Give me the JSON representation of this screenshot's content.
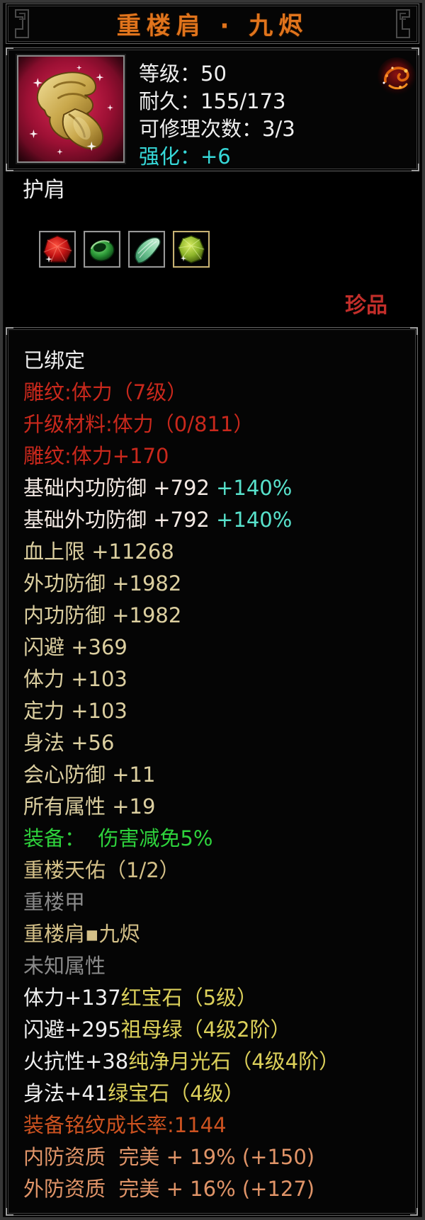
{
  "window": {
    "title": "重楼肩 · 九烬"
  },
  "info": {
    "item_icon": "golden-dragon-shoulder-icon",
    "seal_icon": "red-flame-seal-icon",
    "lines": [
      {
        "text": "等级：50",
        "color": "white"
      },
      {
        "text": "耐久：155/173",
        "color": "white"
      },
      {
        "text": "可修理次数：3/3",
        "color": "white"
      },
      {
        "text": "强化：+6",
        "color": "cyan"
      }
    ]
  },
  "type_label": "护肩",
  "gem_slots": [
    {
      "icon": "ruby-gem-icon",
      "border": "silver"
    },
    {
      "icon": "emerald-ring-gem-icon",
      "border": "silver"
    },
    {
      "icon": "moonstone-gem-icon",
      "border": "silver"
    },
    {
      "icon": "peridot-gem-icon",
      "border": "gold"
    }
  ],
  "rarity_label": "珍品",
  "stats": [
    {
      "segments": [
        {
          "text": "已绑定",
          "color": "white"
        }
      ]
    },
    {
      "segments": [
        {
          "text": "雕纹:体力（7级）",
          "color": "red"
        }
      ]
    },
    {
      "segments": [
        {
          "text": "升级材料:体力（0/811）",
          "color": "red"
        }
      ]
    },
    {
      "segments": [
        {
          "text": "雕纹:体力+170",
          "color": "red"
        }
      ]
    },
    {
      "segments": [
        {
          "text": "基础内功防御 +792 ",
          "color": "pinkwhite"
        },
        {
          "text": "+140%",
          "color": "cyanpct"
        }
      ]
    },
    {
      "segments": [
        {
          "text": "基础外功防御 +792 ",
          "color": "pinkwhite"
        },
        {
          "text": "+140%",
          "color": "cyanpct"
        }
      ]
    },
    {
      "segments": [
        {
          "text": "血上限 +11268",
          "color": "cream"
        }
      ]
    },
    {
      "segments": [
        {
          "text": "外功防御 +1982",
          "color": "cream"
        }
      ]
    },
    {
      "segments": [
        {
          "text": "内功防御 +1982",
          "color": "cream"
        }
      ]
    },
    {
      "segments": [
        {
          "text": "闪避 +369",
          "color": "cream"
        }
      ]
    },
    {
      "segments": [
        {
          "text": "体力 +103",
          "color": "cream"
        }
      ]
    },
    {
      "segments": [
        {
          "text": "定力 +103",
          "color": "cream"
        }
      ]
    },
    {
      "segments": [
        {
          "text": "身法 +56",
          "color": "cream"
        }
      ]
    },
    {
      "segments": [
        {
          "text": "会心防御 +11",
          "color": "cream"
        }
      ]
    },
    {
      "segments": [
        {
          "text": "所有属性 +19",
          "color": "cream"
        }
      ]
    },
    {
      "segments": [
        {
          "text": "装备：  伤害减免5%",
          "color": "green"
        }
      ]
    },
    {
      "segments": [
        {
          "text": "重楼天佑（1/2）",
          "color": "tan"
        }
      ]
    },
    {
      "segments": [
        {
          "text": "重楼甲",
          "color": "gray"
        }
      ]
    },
    {
      "segments": [
        {
          "text": "重楼肩▪九烬",
          "color": "tan"
        }
      ]
    },
    {
      "segments": [
        {
          "text": "未知属性",
          "color": "gray"
        }
      ]
    },
    {
      "segments": [
        {
          "text": "体力+137",
          "color": "white"
        },
        {
          "text": "红宝石（5级）",
          "color": "yellow"
        }
      ]
    },
    {
      "segments": [
        {
          "text": "闪避+295",
          "color": "white"
        },
        {
          "text": "祖母绿（4级2阶）",
          "color": "yellow"
        }
      ]
    },
    {
      "segments": [
        {
          "text": "火抗性+38",
          "color": "white"
        },
        {
          "text": "纯净月光石（4级4阶）",
          "color": "yellow"
        }
      ]
    },
    {
      "segments": [
        {
          "text": "身法+41",
          "color": "white"
        },
        {
          "text": "绿宝石（4级）",
          "color": "yellow"
        }
      ]
    },
    {
      "segments": [
        {
          "text": "装备铭纹成长率:1144",
          "color": "orangered"
        }
      ]
    },
    {
      "segments": [
        {
          "text": "内防资质  完美 + 19% (+150)",
          "color": "salmon"
        }
      ]
    },
    {
      "segments": [
        {
          "text": "外防资质  完美 + 16% (+127)",
          "color": "salmon"
        }
      ]
    }
  ],
  "colors": {
    "title": "#e0741c",
    "white": "#efefef",
    "cyan": "#36d8d8",
    "cyanpct": "#58e2cc",
    "red": "#c9281c",
    "crimson": "#c22e2a",
    "cream": "#dccfa0",
    "pinkwhite": "#f3e9e3",
    "green": "#2ed23c",
    "tan": "#d4c088",
    "gray": "#8a8a8a",
    "yellow": "#dcd05a",
    "orangered": "#cc5220",
    "salmon": "#e09468"
  }
}
